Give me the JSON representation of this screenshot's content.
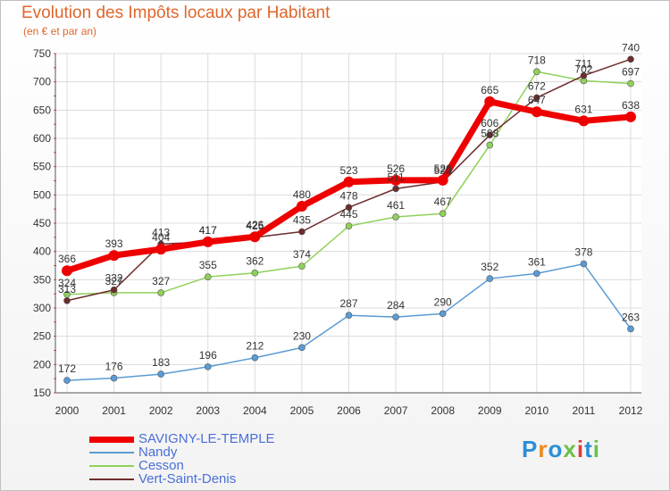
{
  "title": "Evolution des Impôts locaux par Habitant",
  "subtitle": "(en € et par an)",
  "logo": {
    "text": "Proxiti",
    "colors": [
      "#2b8fd6",
      "#f08a1d",
      "#2b8fd6",
      "#6cc04a",
      "#e03a3a",
      "#2b8fd6",
      "#6cc04a"
    ]
  },
  "chart_data": {
    "type": "line",
    "x": [
      2000,
      2001,
      2002,
      2003,
      2004,
      2005,
      2006,
      2007,
      2008,
      2009,
      2010,
      2011,
      2012
    ],
    "ylim": [
      150,
      750
    ],
    "yticks": [
      150,
      200,
      250,
      300,
      350,
      400,
      450,
      500,
      550,
      600,
      650,
      700,
      750
    ],
    "grid": true,
    "legend_position": "bottom-left",
    "series": [
      {
        "name": "SAVIGNY-LE-TEMPLE",
        "color": "#ee0000",
        "values": [
          366,
          393,
          404,
          417,
          426,
          480,
          523,
          526,
          526,
          665,
          647,
          631,
          638
        ]
      },
      {
        "name": "Nandy",
        "color": "#5b9bd5",
        "values": [
          172,
          176,
          183,
          196,
          212,
          230,
          287,
          284,
          290,
          352,
          361,
          378,
          263
        ]
      },
      {
        "name": "Cesson",
        "color": "#8fd15a",
        "values": [
          324,
          327,
          327,
          355,
          362,
          374,
          445,
          461,
          467,
          588,
          718,
          702,
          697
        ]
      },
      {
        "name": "Vert-Saint-Denis",
        "color": "#6e2c2c",
        "values": [
          313,
          332,
          413,
          417,
          425,
          435,
          478,
          511,
          523,
          606,
          672,
          711,
          740
        ]
      }
    ]
  }
}
